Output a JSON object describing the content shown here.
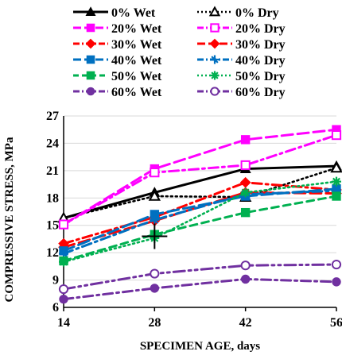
{
  "chart_data": {
    "type": "line",
    "title": "",
    "xlabel": "SPECIMEN  AGE, days",
    "ylabel": "COMPRESSIVE  STRESS, MPa",
    "xlim": [
      14,
      56
    ],
    "ylim": [
      6,
      27
    ],
    "xticks": [
      14,
      28,
      42,
      56
    ],
    "yticks": [
      6,
      9,
      12,
      15,
      18,
      21,
      24,
      27
    ],
    "grid": "horizontal",
    "legend_position": "top",
    "x": [
      14,
      28,
      42,
      56
    ],
    "series": [
      {
        "name": "0% Wet",
        "values": [
          15.8,
          18.6,
          21.2,
          21.5
        ],
        "color": "#000000",
        "dash": "solid",
        "marker": "triangle",
        "filled": true
      },
      {
        "name": "0% Dry",
        "values": [
          15.8,
          18.2,
          18.1,
          21.3
        ],
        "color": "#000000",
        "dash": "dotted",
        "marker": "triangle",
        "filled": false
      },
      {
        "name": "20% Wet",
        "values": [
          15.1,
          21.2,
          24.4,
          25.5
        ],
        "color": "#ff00ff",
        "dash": "longdash",
        "marker": "square",
        "filled": true
      },
      {
        "name": "20% Dry",
        "values": [
          15.1,
          20.8,
          21.6,
          24.9
        ],
        "color": "#ff00ff",
        "dash": "dashdot",
        "marker": "square",
        "filled": false
      },
      {
        "name": "30% Wet",
        "values": [
          13.0,
          15.9,
          19.7,
          18.9
        ],
        "color": "#ff0000",
        "dash": "dashdot",
        "marker": "diamond",
        "filled": true
      },
      {
        "name": "30% Dry",
        "values": [
          12.6,
          15.5,
          18.6,
          18.5
        ],
        "color": "#ff0000",
        "dash": "longdash",
        "marker": "diamond",
        "filled": true
      },
      {
        "name": "40% Wet",
        "values": [
          12.2,
          16.2,
          18.2,
          19.0
        ],
        "color": "#0070c0",
        "dash": "longdash",
        "marker": "square",
        "filled": true
      },
      {
        "name": "40% Dry",
        "values": [
          11.9,
          15.6,
          18.4,
          18.8
        ],
        "color": "#0070c0",
        "dash": "dashdot",
        "marker": "star",
        "filled": true
      },
      {
        "name": "50% Wet",
        "values": [
          11.1,
          14.0,
          16.4,
          18.2
        ],
        "color": "#00b050",
        "dash": "dashed",
        "marker": "square",
        "filled": true
      },
      {
        "name": "50% Dry",
        "values": [
          11.0,
          13.6,
          18.6,
          19.8
        ],
        "color": "#00b050",
        "dash": "dotted",
        "marker": "asterisk",
        "filled": true
      },
      {
        "name": "60% Wet",
        "values": [
          6.9,
          8.1,
          9.1,
          8.8
        ],
        "color": "#7030a0",
        "dash": "dashdot",
        "marker": "circle",
        "filled": true
      },
      {
        "name": "60% Dry",
        "values": [
          8.0,
          9.7,
          10.6,
          10.7
        ],
        "color": "#7030a0",
        "dash": "dashdot2",
        "marker": "circle",
        "filled": false
      }
    ],
    "annotations": [
      {
        "type": "cross-marker",
        "x": 28,
        "y": 13.8,
        "color": "#000000"
      }
    ]
  }
}
